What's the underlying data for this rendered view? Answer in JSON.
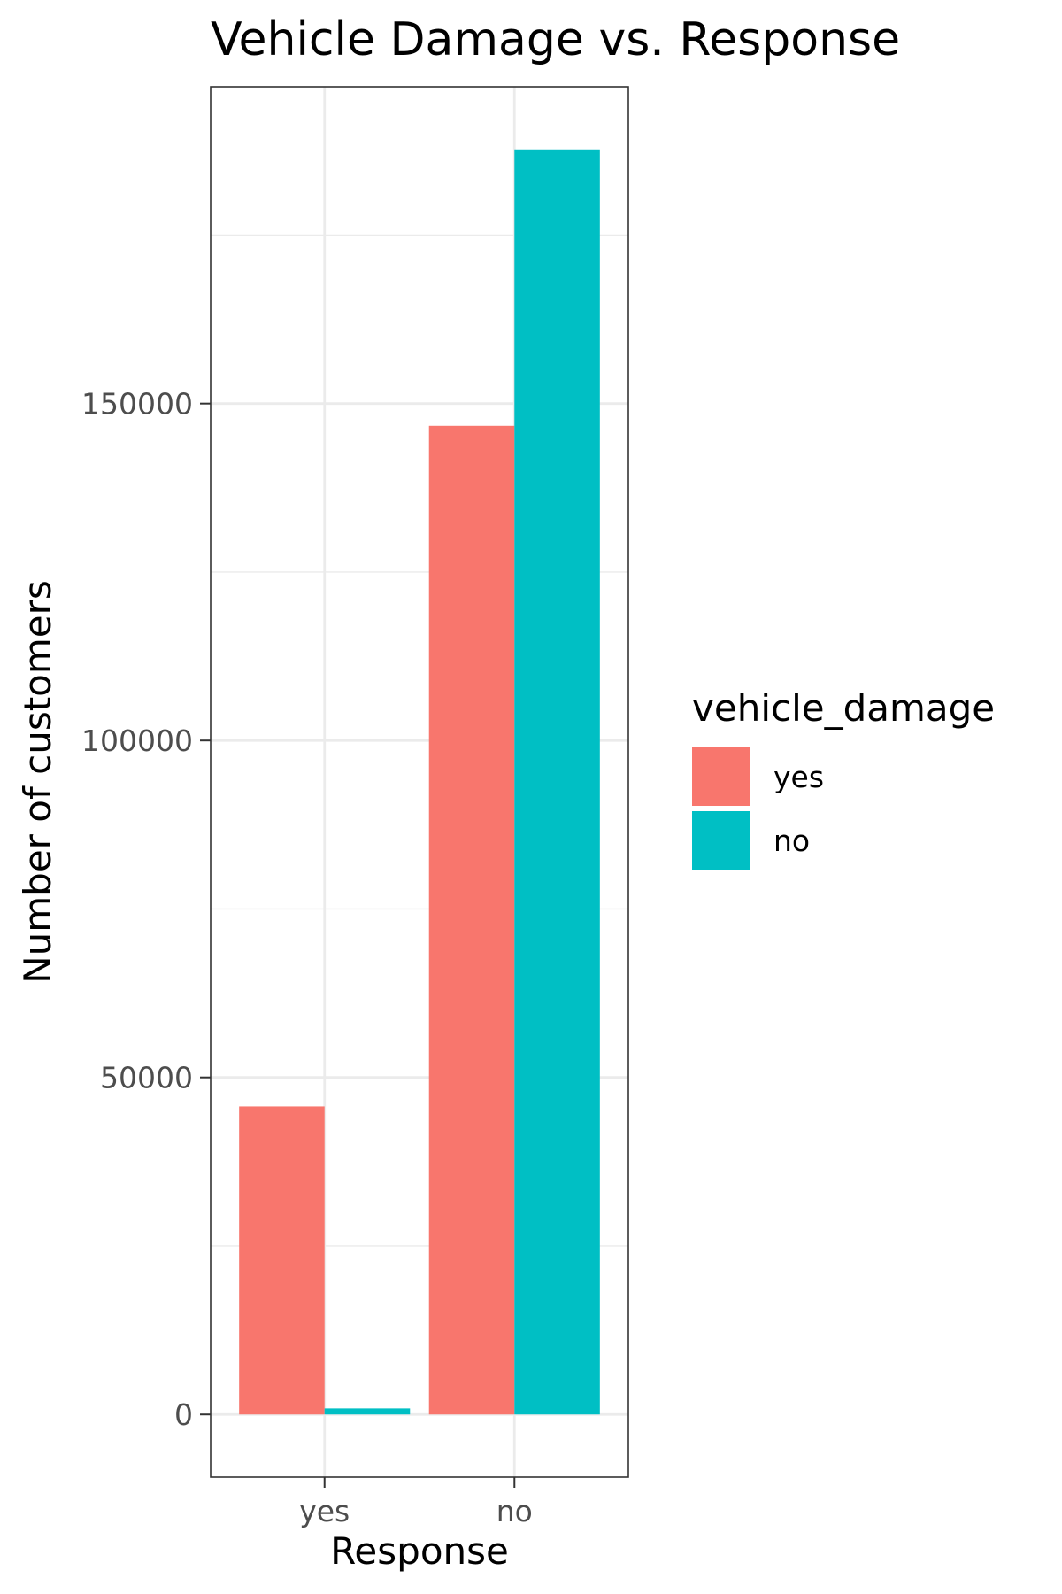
{
  "chart_data": {
    "type": "bar",
    "title": "Vehicle Damage vs. Response",
    "xlabel": "Response",
    "ylabel": "Number of customers",
    "categories": [
      "yes",
      "no"
    ],
    "series": [
      {
        "name": "yes",
        "color": "#F8766D",
        "values": [
          45700,
          146700
        ]
      },
      {
        "name": "no",
        "color": "#00BFC4",
        "values": [
          900,
          187700
        ]
      }
    ],
    "ylim": [
      -9300,
      197000
    ],
    "yticks": [
      0,
      50000,
      100000,
      150000
    ],
    "ytick_labels": [
      "0",
      "50000",
      "100000",
      "150000"
    ],
    "y_minor_gridlines": [
      25000,
      75000,
      125000,
      175000
    ],
    "grid": true,
    "legend": {
      "title": "vehicle_damage",
      "position": "right"
    }
  }
}
